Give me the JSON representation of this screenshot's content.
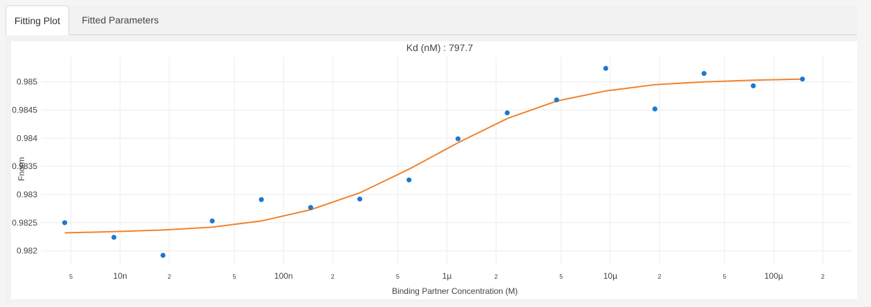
{
  "tabs": [
    {
      "label": "Fitting Plot",
      "active": true
    },
    {
      "label": "Fitted Parameters",
      "active": false
    }
  ],
  "chart_data": {
    "type": "scatter",
    "title": "Kd (nM) : 797.7",
    "xlabel": "Binding Partner Concentration (M)",
    "ylabel": "Fnorm",
    "x_scale": "log",
    "xlim": [
      3.3e-09,
      0.0003
    ],
    "ylim": [
      0.98175,
      0.98545
    ],
    "grid": true,
    "y_ticks": [
      0.982,
      0.9825,
      0.983,
      0.9835,
      0.984,
      0.9845,
      0.985
    ],
    "y_tick_labels": [
      "0.982",
      "0.9825",
      "0.983",
      "0.9835",
      "0.984",
      "0.9845",
      "0.985"
    ],
    "x_ticks": [
      5e-09,
      1e-08,
      2e-08,
      5e-08,
      1e-07,
      2e-07,
      5e-07,
      1e-06,
      2e-06,
      5e-06,
      1e-05,
      2e-05,
      5e-05,
      0.0001,
      0.0002
    ],
    "x_tick_labels": [
      "5",
      "10n",
      "2",
      "5",
      "100n",
      "2",
      "5",
      "1µ",
      "2",
      "5",
      "10µ",
      "2",
      "5",
      "100µ",
      "2"
    ],
    "series": [
      {
        "mode": "markers",
        "color": "#1f77d0",
        "x": [
          4.58e-09,
          9.16e-09,
          1.83e-08,
          3.66e-08,
          7.32e-08,
          1.465e-07,
          2.93e-07,
          5.86e-07,
          1.17e-06,
          2.34e-06,
          4.69e-06,
          9.38e-06,
          1.875e-05,
          3.75e-05,
          7.5e-05,
          0.00015
        ],
        "y": [
          0.9825,
          0.98224,
          0.98192,
          0.98253,
          0.98291,
          0.98277,
          0.98292,
          0.98326,
          0.98399,
          0.98445,
          0.98468,
          0.98524,
          0.98452,
          0.98515,
          0.98493,
          0.98505
        ]
      },
      {
        "mode": "lines",
        "color": "#f0822c",
        "x": [
          4.58e-09,
          9.16e-09,
          1.83e-08,
          3.66e-08,
          7.32e-08,
          1.465e-07,
          2.93e-07,
          5.86e-07,
          1.17e-06,
          2.34e-06,
          4.69e-06,
          9.38e-06,
          1.875e-05,
          3.75e-05,
          7.5e-05,
          0.00015
        ],
        "y": [
          0.98232,
          0.98234,
          0.98237,
          0.98242,
          0.98253,
          0.98273,
          0.98303,
          0.98345,
          0.98392,
          0.98435,
          0.98466,
          0.98484,
          0.98495,
          0.985,
          0.98503,
          0.98505
        ]
      }
    ]
  }
}
